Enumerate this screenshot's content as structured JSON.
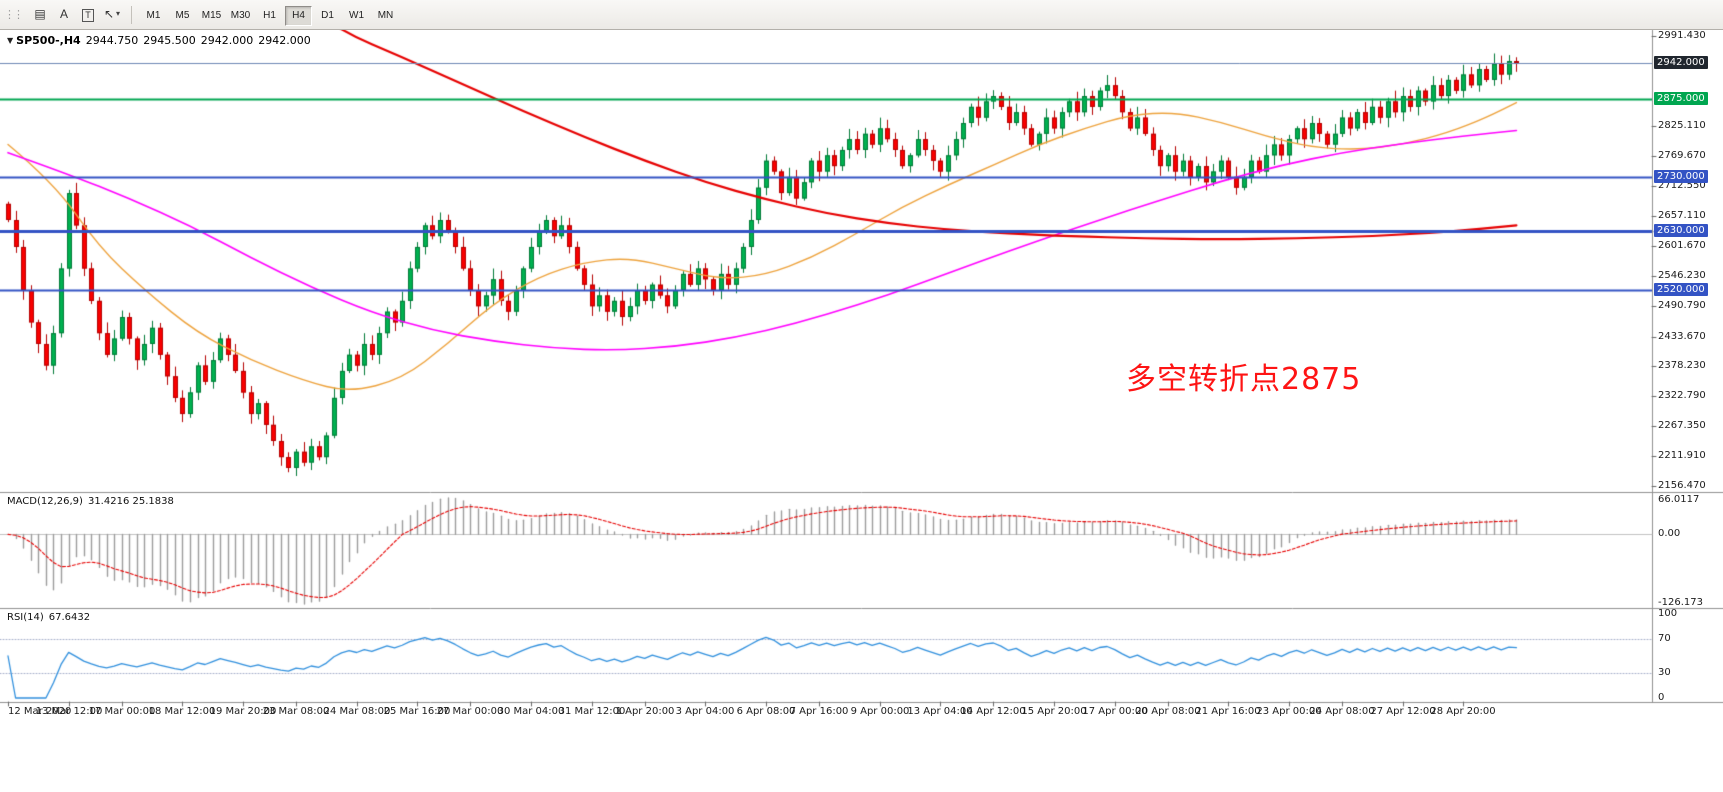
{
  "toolbar": {
    "grip": "⋮⋮",
    "icons": [
      {
        "name": "chart-window-icon",
        "glyph": "▤"
      },
      {
        "name": "annotation-letter-icon",
        "glyph": "A"
      },
      {
        "name": "text-template-icon",
        "glyph": "T",
        "boxed": true
      },
      {
        "name": "cursor-tool-icon",
        "glyph": "↖",
        "caret": "▾"
      }
    ],
    "timeframes": [
      "M1",
      "M5",
      "M15",
      "M30",
      "H1",
      "H4",
      "D1",
      "W1",
      "MN"
    ],
    "active_timeframe": "H4"
  },
  "header": {
    "expander": "▼",
    "symbol": "SP500-,H4",
    "open": "2944.750",
    "high": "2945.500",
    "low": "2942.000",
    "close": "2942.000"
  },
  "macd_header": {
    "name": "MACD(12,26,9)",
    "values": "31.4216 25.1838"
  },
  "rsi_header": {
    "name": "RSI(14)",
    "values": "67.6432"
  },
  "annotation": {
    "text": "多空转折点2875",
    "color": "#fe1414"
  },
  "chart_data": {
    "type": "candlestick",
    "main": {
      "price_min": 2156.47,
      "price_max": 2991.43,
      "first_open": 2680,
      "closes": [
        2650,
        2600,
        2520,
        2460,
        2420,
        2380,
        2440,
        2560,
        2700,
        2640,
        2560,
        2500,
        2440,
        2400,
        2430,
        2470,
        2430,
        2390,
        2420,
        2450,
        2400,
        2360,
        2320,
        2290,
        2330,
        2380,
        2350,
        2390,
        2430,
        2400,
        2370,
        2330,
        2290,
        2310,
        2270,
        2240,
        2210,
        2190,
        2220,
        2200,
        2230,
        2210,
        2250,
        2320,
        2370,
        2400,
        2380,
        2420,
        2400,
        2440,
        2480,
        2460,
        2500,
        2560,
        2600,
        2640,
        2620,
        2650,
        2630,
        2600,
        2560,
        2520,
        2490,
        2510,
        2540,
        2500,
        2480,
        2520,
        2560,
        2600,
        2630,
        2650,
        2620,
        2640,
        2600,
        2560,
        2530,
        2490,
        2510,
        2480,
        2500,
        2470,
        2490,
        2520,
        2500,
        2530,
        2510,
        2490,
        2520,
        2550,
        2530,
        2560,
        2540,
        2520,
        2550,
        2530,
        2560,
        2600,
        2650,
        2710,
        2760,
        2740,
        2700,
        2730,
        2690,
        2720,
        2760,
        2740,
        2770,
        2750,
        2780,
        2800,
        2780,
        2810,
        2790,
        2820,
        2800,
        2780,
        2750,
        2770,
        2800,
        2780,
        2760,
        2740,
        2770,
        2800,
        2830,
        2860,
        2840,
        2870,
        2880,
        2860,
        2830,
        2850,
        2820,
        2790,
        2810,
        2840,
        2820,
        2850,
        2870,
        2850,
        2880,
        2860,
        2890,
        2900,
        2880,
        2850,
        2820,
        2840,
        2810,
        2780,
        2750,
        2770,
        2740,
        2760,
        2730,
        2750,
        2720,
        2740,
        2760,
        2730,
        2710,
        2730,
        2760,
        2740,
        2770,
        2790,
        2770,
        2800,
        2820,
        2800,
        2830,
        2810,
        2790,
        2810,
        2840,
        2820,
        2850,
        2830,
        2860,
        2840,
        2870,
        2850,
        2880,
        2860,
        2890,
        2870,
        2900,
        2880,
        2910,
        2890,
        2920,
        2900,
        2930,
        2910,
        2940,
        2920,
        2945,
        2942
      ],
      "axis_labels": [
        {
          "text": "2991.430",
          "price": 2991.43
        },
        {
          "text": "2825.110",
          "price": 2825.11
        },
        {
          "text": "2769.670",
          "price": 2769.67
        },
        {
          "text": "2712.550",
          "price": 2712.55
        },
        {
          "text": "2657.110",
          "price": 2657.11
        },
        {
          "text": "2601.670",
          "price": 2601.67
        },
        {
          "text": "2546.230",
          "price": 2546.23
        },
        {
          "text": "2490.790",
          "price": 2490.79
        },
        {
          "text": "2433.670",
          "price": 2433.67
        },
        {
          "text": "2378.230",
          "price": 2378.23
        },
        {
          "text": "2322.790",
          "price": 2322.79
        },
        {
          "text": "2267.350",
          "price": 2267.35
        },
        {
          "text": "2211.910",
          "price": 2211.91
        },
        {
          "text": "2156.470",
          "price": 2156.47
        }
      ],
      "price_marker": {
        "text": "2942.000",
        "price": 2942.0,
        "bg": "#20262e"
      },
      "hlines": [
        {
          "text": "2875.000",
          "price": 2875.0,
          "color": "#00a650",
          "width": 2
        },
        {
          "text": "2730.000",
          "price": 2730.0,
          "color": "#3353c4",
          "width": 2
        },
        {
          "text": "2630.000",
          "price": 2630.0,
          "color": "#3353c4",
          "width": 3
        },
        {
          "text": "2520.000",
          "price": 2520.0,
          "color": "#3353c4",
          "width": 2
        }
      ],
      "price_line": {
        "price": 2942.0,
        "color": "#6d87b5"
      },
      "colors": {
        "up": "#00b050",
        "up_edge": "#007a37",
        "down": "#f80000",
        "down_edge": "#b40000"
      },
      "mas": [
        {
          "name": "ma-fast-orange",
          "color": "#eda23c",
          "width": 1.4,
          "points": [
            [
              0,
              2790
            ],
            [
              6,
              2720
            ],
            [
              12,
              2600
            ],
            [
              18,
              2520
            ],
            [
              25,
              2440
            ],
            [
              32,
              2390
            ],
            [
              39,
              2352
            ],
            [
              45,
              2330
            ],
            [
              52,
              2355
            ],
            [
              58,
              2420
            ],
            [
              64,
              2495
            ],
            [
              70,
              2545
            ],
            [
              76,
              2572
            ],
            [
              82,
              2580
            ],
            [
              88,
              2560
            ],
            [
              94,
              2540
            ],
            [
              100,
              2548
            ],
            [
              106,
              2580
            ],
            [
              112,
              2625
            ],
            [
              118,
              2675
            ],
            [
              124,
              2715
            ],
            [
              130,
              2752
            ],
            [
              136,
              2790
            ],
            [
              142,
              2820
            ],
            [
              148,
              2845
            ],
            [
              154,
              2850
            ],
            [
              160,
              2832
            ],
            [
              166,
              2805
            ],
            [
              172,
              2785
            ],
            [
              178,
              2780
            ],
            [
              184,
              2790
            ],
            [
              190,
              2812
            ],
            [
              195,
              2840
            ],
            [
              199,
              2868
            ]
          ]
        },
        {
          "name": "ma-mid-magenta",
          "color": "#ff00ff",
          "width": 1.6,
          "points": [
            [
              0,
              2775
            ],
            [
              8,
              2735
            ],
            [
              16,
              2690
            ],
            [
              24,
              2640
            ],
            [
              32,
              2580
            ],
            [
              40,
              2525
            ],
            [
              48,
              2478
            ],
            [
              56,
              2445
            ],
            [
              64,
              2425
            ],
            [
              72,
              2412
            ],
            [
              80,
              2408
            ],
            [
              88,
              2415
            ],
            [
              96,
              2432
            ],
            [
              104,
              2458
            ],
            [
              112,
              2492
            ],
            [
              120,
              2530
            ],
            [
              128,
              2572
            ],
            [
              136,
              2612
            ],
            [
              144,
              2650
            ],
            [
              152,
              2687
            ],
            [
              160,
              2722
            ],
            [
              168,
              2752
            ],
            [
              176,
              2775
            ],
            [
              184,
              2792
            ],
            [
              192,
              2806
            ],
            [
              199,
              2816
            ]
          ]
        },
        {
          "name": "ma-slow-red",
          "color": "#e60000",
          "width": 2.2,
          "points": [
            [
              40,
              3040
            ],
            [
              44,
              3000
            ],
            [
              52,
              2952
            ],
            [
              60,
              2902
            ],
            [
              68,
              2852
            ],
            [
              76,
              2804
            ],
            [
              84,
              2760
            ],
            [
              92,
              2720
            ],
            [
              100,
              2688
            ],
            [
              108,
              2662
            ],
            [
              116,
              2644
            ],
            [
              124,
              2632
            ],
            [
              132,
              2625
            ],
            [
              140,
              2620
            ],
            [
              150,
              2616
            ],
            [
              160,
              2614
            ],
            [
              170,
              2616
            ],
            [
              180,
              2620
            ],
            [
              190,
              2628
            ],
            [
              199,
              2640
            ]
          ]
        }
      ]
    },
    "macd": {
      "params": {
        "fast": 12,
        "slow": 26,
        "signal": 9
      },
      "current": [
        31.4216,
        25.1838
      ],
      "axis": {
        "max": "66.0117",
        "zero": "0.00",
        "min": "-126.173",
        "max_val": 66.0117,
        "min_val": -126.173
      },
      "colors": {
        "hist": "#9b9b9b",
        "signal": "#e60000"
      }
    },
    "rsi": {
      "params": {
        "period": 14
      },
      "current": 67.6432,
      "levels": [
        100,
        70,
        30,
        0
      ],
      "color": "#2f8fdd"
    },
    "time_axis": [
      {
        "bar": 0,
        "label": "12 Mar 2020"
      },
      {
        "bar": 8,
        "label": "13 Mar 12:00"
      },
      {
        "bar": 15,
        "label": "17 Mar 00:00"
      },
      {
        "bar": 23,
        "label": "18 Mar 12:00"
      },
      {
        "bar": 31,
        "label": "19 Mar 20:00"
      },
      {
        "bar": 38,
        "label": "23 Mar 08:00"
      },
      {
        "bar": 46,
        "label": "24 Mar 08:00"
      },
      {
        "bar": 54,
        "label": "25 Mar 16:00"
      },
      {
        "bar": 61,
        "label": "27 Mar 00:00"
      },
      {
        "bar": 69,
        "label": "30 Mar 04:00"
      },
      {
        "bar": 77,
        "label": "31 Mar 12:00"
      },
      {
        "bar": 84,
        "label": "1 Apr 20:00"
      },
      {
        "bar": 92,
        "label": "3 Apr 04:00"
      },
      {
        "bar": 100,
        "label": "6 Apr 08:00"
      },
      {
        "bar": 107,
        "label": "7 Apr 16:00"
      },
      {
        "bar": 115,
        "label": "9 Apr 00:00"
      },
      {
        "bar": 123,
        "label": "13 Apr 04:00"
      },
      {
        "bar": 130,
        "label": "14 Apr 12:00"
      },
      {
        "bar": 138,
        "label": "15 Apr 20:00"
      },
      {
        "bar": 146,
        "label": "17 Apr 00:00"
      },
      {
        "bar": 153,
        "label": "20 Apr 08:00"
      },
      {
        "bar": 161,
        "label": "21 Apr 16:00"
      },
      {
        "bar": 169,
        "label": "23 Apr 00:00"
      },
      {
        "bar": 176,
        "label": "24 Apr 08:00"
      },
      {
        "bar": 184,
        "label": "27 Apr 12:00"
      },
      {
        "bar": 192,
        "label": "28 Apr 20:00"
      }
    ]
  }
}
